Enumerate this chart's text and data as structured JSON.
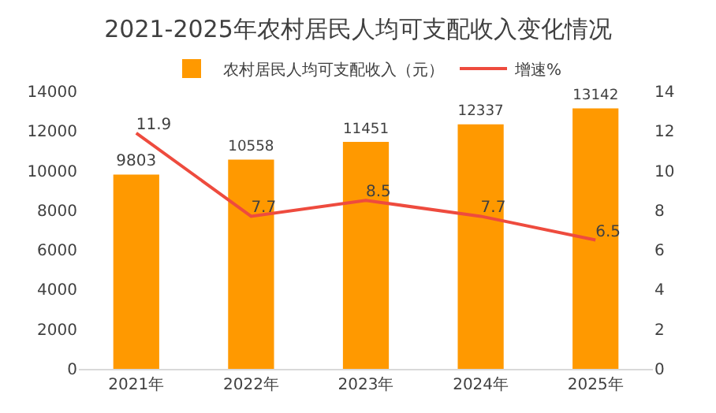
{
  "chart_data": {
    "type": "bar",
    "title": "2021-2025年农村居民人均可支配收入变化情况",
    "categories": [
      "2021年",
      "2022年",
      "2023年",
      "2024年",
      "2025年"
    ],
    "series": [
      {
        "name": "农村居民人均可支配收入（元）",
        "color": "#ff9900",
        "values": [
          9803,
          10558,
          11451,
          12337,
          13142
        ]
      },
      {
        "name": "增速%",
        "type": "line",
        "axis": "y2",
        "color": "#ee4b3e",
        "values": [
          11.9,
          7.7,
          8.5,
          7.7,
          6.5
        ]
      }
    ],
    "ylim": [
      0,
      14000
    ],
    "yticks": [
      0,
      2000,
      4000,
      6000,
      8000,
      10000,
      12000,
      14000
    ],
    "y2lim": [
      0,
      14
    ],
    "y2ticks": [
      0,
      2,
      4,
      6,
      8,
      10,
      12,
      14
    ],
    "data_labels": true,
    "legend": "top",
    "grid": false,
    "marker": "none",
    "line_style": "solid"
  }
}
